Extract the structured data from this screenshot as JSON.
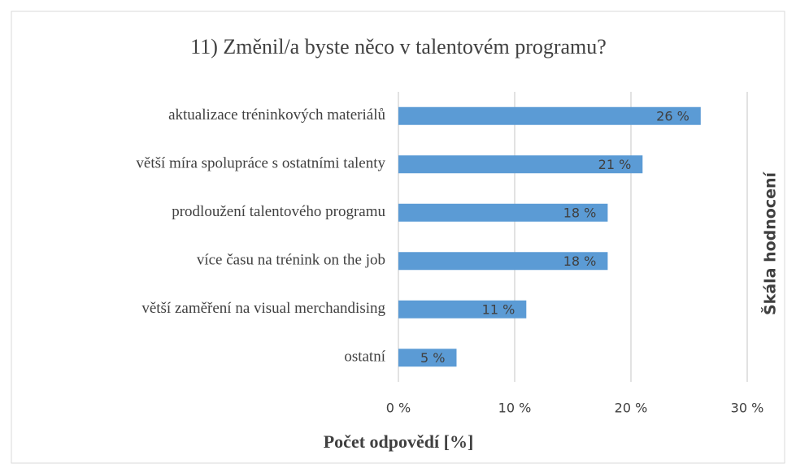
{
  "chart_data": {
    "type": "bar",
    "orientation": "horizontal",
    "title": "11) Změnil/a byste něco v talentovém programu?",
    "categories": [
      "aktualizace tréninkových materiálů",
      "větší míra spolupráce s ostatními talenty",
      "prodloužení talentového programu",
      "více času na trénink on the job",
      "větší zaměření na visual merchandising",
      "ostatní"
    ],
    "values": [
      26,
      21,
      18,
      18,
      11,
      5
    ],
    "value_labels": [
      "26 %",
      "21 %",
      "18 %",
      "18 %",
      "11 %",
      "5 %"
    ],
    "color": "#5b9bd5",
    "xlim": [
      0,
      30
    ],
    "xticks": [
      {
        "value": 0,
        "label": "0 %"
      },
      {
        "value": 10,
        "label": "10 %"
      },
      {
        "value": 20,
        "label": "20 %"
      },
      {
        "value": 30,
        "label": "30 %"
      }
    ],
    "xlabel": "Počet odpovědí [%]",
    "right_label": "Škála hodnocení",
    "grid": true
  }
}
